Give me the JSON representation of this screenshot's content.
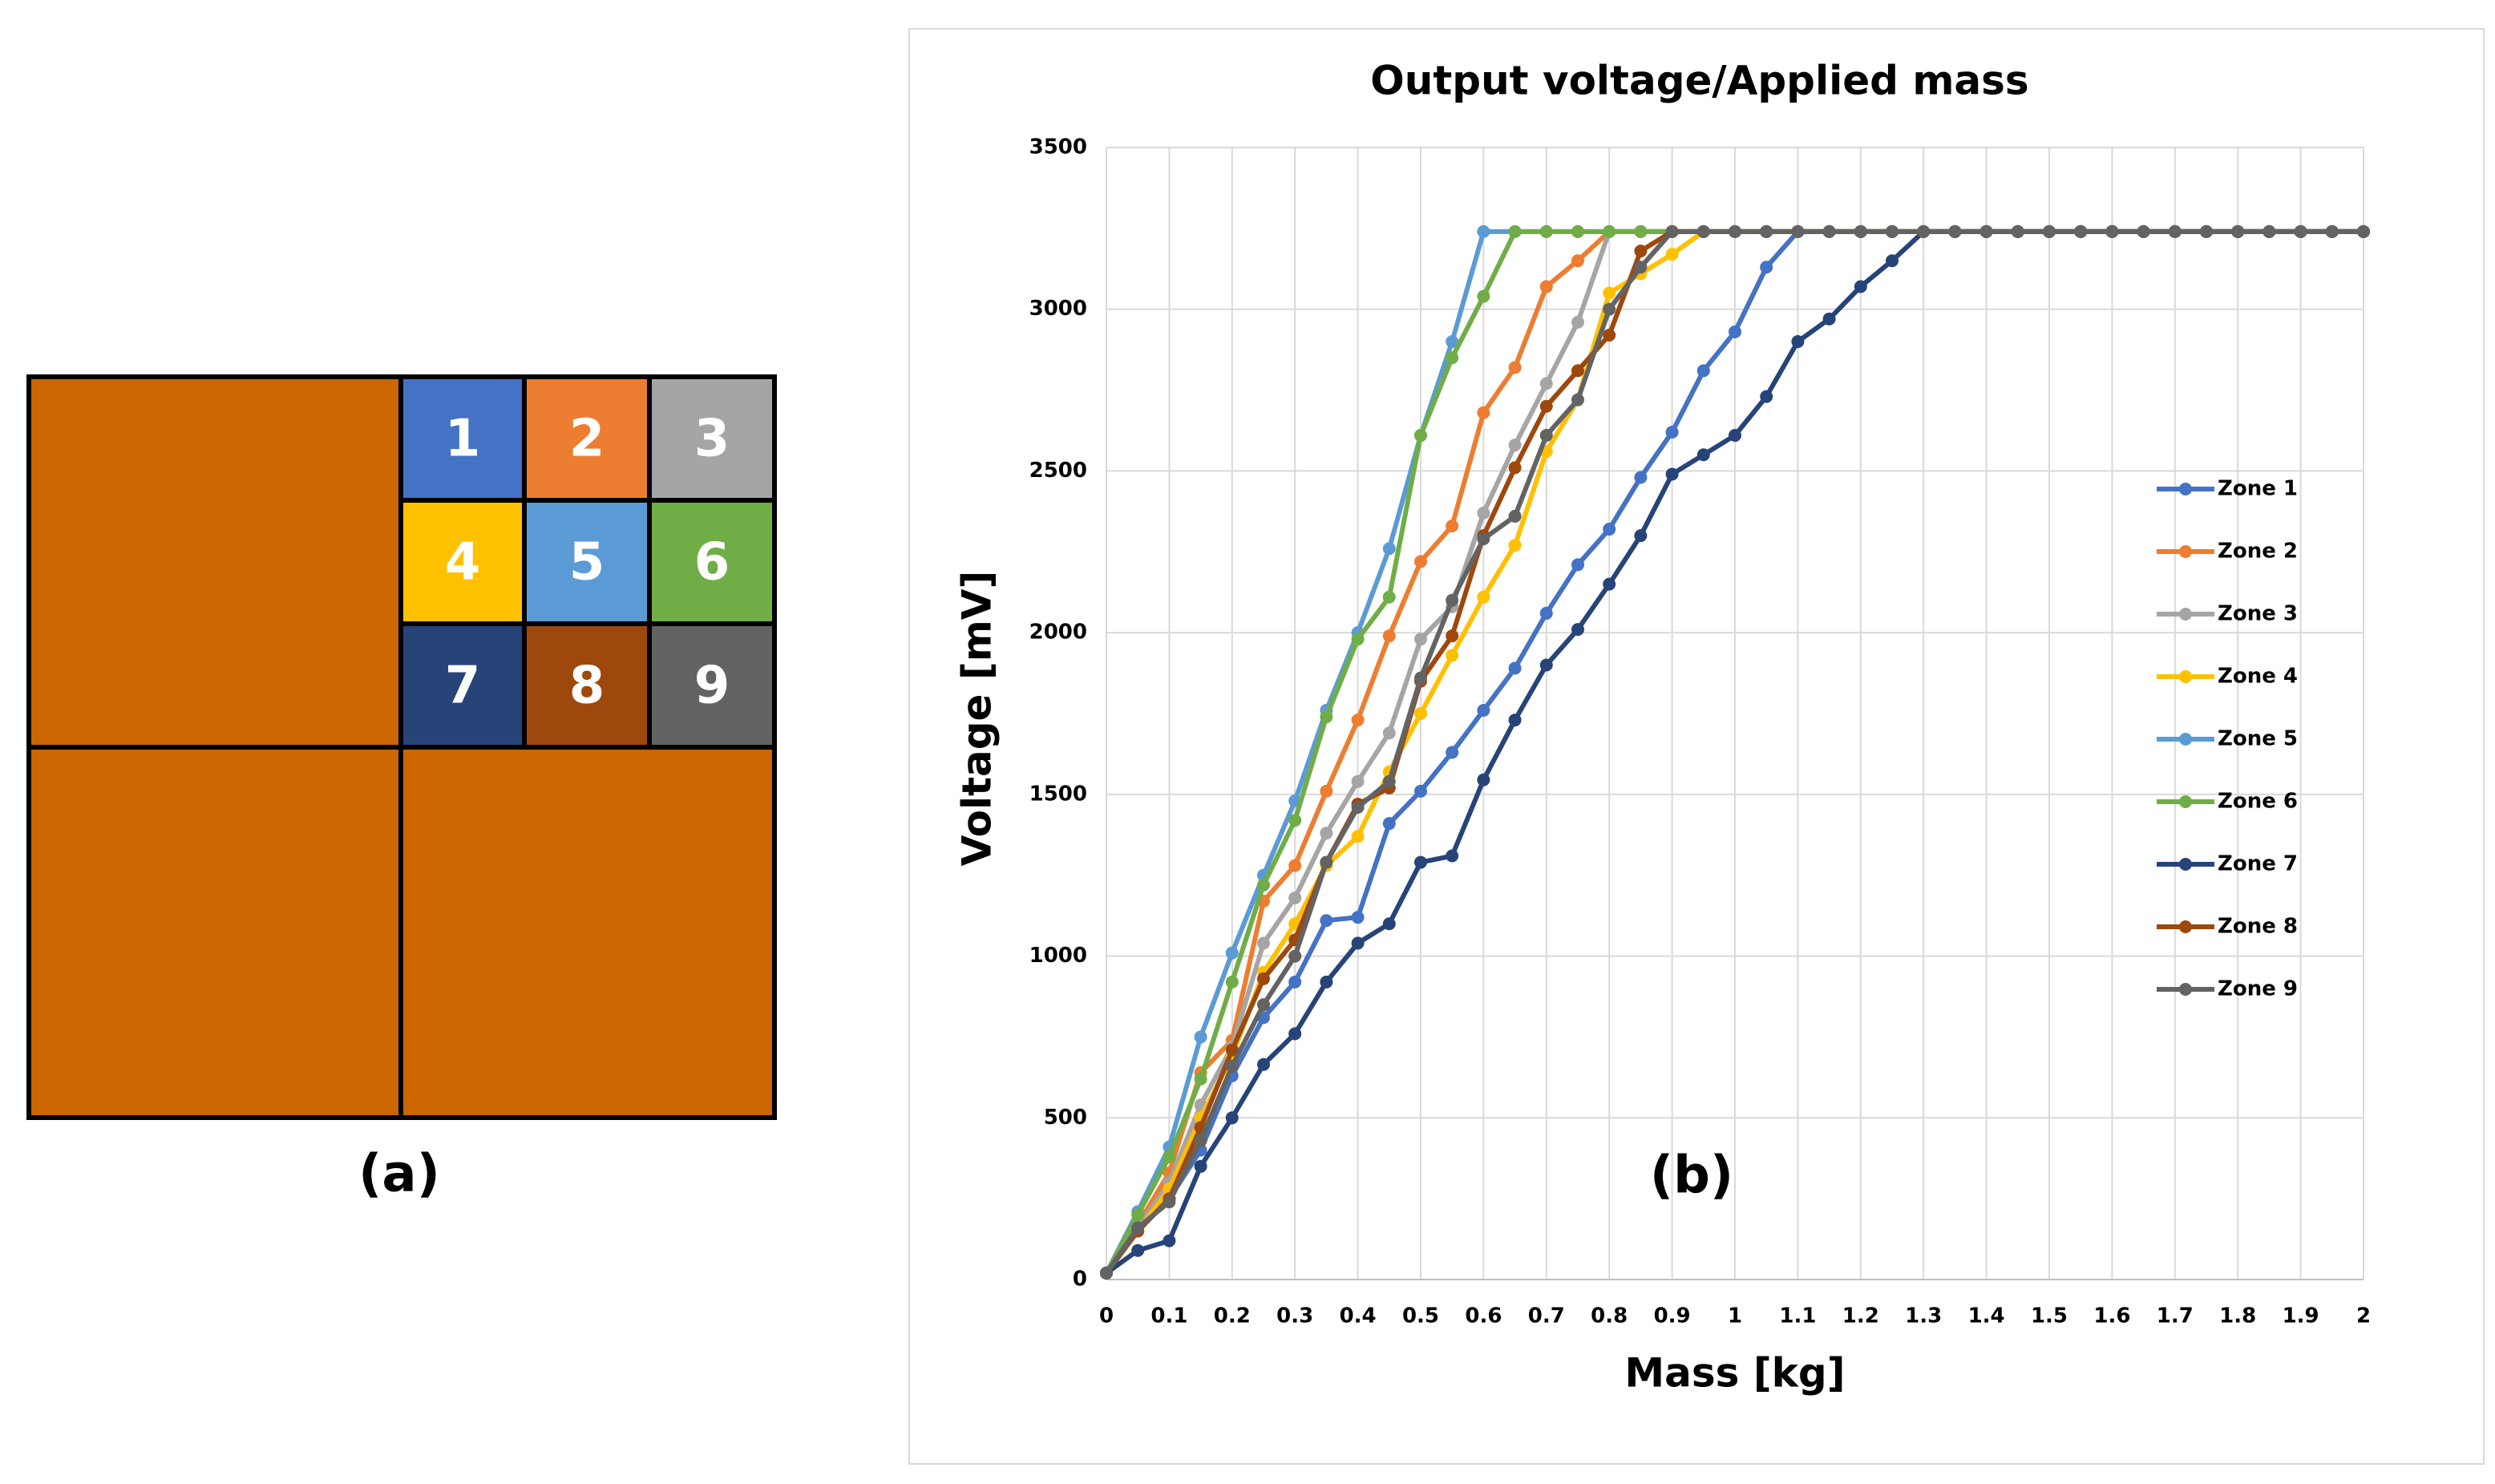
{
  "diagram": {
    "cells": [
      {
        "label": "1",
        "color": "#4472c4"
      },
      {
        "label": "2",
        "color": "#ed7d31"
      },
      {
        "label": "3",
        "color": "#a5a5a5"
      },
      {
        "label": "4",
        "color": "#ffc000"
      },
      {
        "label": "5",
        "color": "#5b9bd5"
      },
      {
        "label": "6",
        "color": "#70ad47"
      },
      {
        "label": "7",
        "color": "#264478"
      },
      {
        "label": "8",
        "color": "#9e480e"
      },
      {
        "label": "9",
        "color": "#636363"
      }
    ],
    "panel_color": "#cc6600",
    "label": "(a)"
  },
  "chart_data": {
    "type": "line",
    "title": "Output voltage/Applied mass",
    "annotation": "(b)",
    "x_label": "Mass [kg]",
    "y_label": "Voltage [mV]",
    "x": [
      0,
      0.05,
      0.1,
      0.15,
      0.2,
      0.25,
      0.3,
      0.35,
      0.4,
      0.45,
      0.5,
      0.55,
      0.6,
      0.65,
      0.7,
      0.75,
      0.8,
      0.85,
      0.9,
      0.95,
      1,
      1.05,
      1.1,
      1.15,
      1.2,
      1.25,
      1.3,
      1.35,
      1.4,
      1.45,
      1.5,
      1.55,
      1.6,
      1.65,
      1.7,
      1.75,
      1.8,
      1.85,
      1.9,
      1.95,
      2
    ],
    "xlim": [
      0,
      2
    ],
    "xticks": [
      0,
      0.1,
      0.2,
      0.3,
      0.4,
      0.5,
      0.6,
      0.7,
      0.8,
      0.9,
      1,
      1.1,
      1.2,
      1.3,
      1.4,
      1.5,
      1.6,
      1.7,
      1.8,
      1.9,
      2
    ],
    "ylim": [
      0,
      3500
    ],
    "yticks": [
      0,
      500,
      1000,
      1500,
      2000,
      2500,
      3000,
      3500
    ],
    "grid": true,
    "legend": "right",
    "series": [
      {
        "name": "Zone 1",
        "color": "#4472c4",
        "values": [
          20,
          150,
          250,
          400,
          630,
          810,
          920,
          1110,
          1120,
          1410,
          1510,
          1630,
          1760,
          1890,
          2060,
          2210,
          2320,
          2480,
          2620,
          2810,
          2930,
          3130,
          3240,
          3240,
          3240,
          3240,
          3240,
          3240,
          3240,
          3240,
          3240,
          3240,
          3240,
          3240,
          3240,
          3240,
          3240,
          3240,
          3240,
          3240,
          3240
        ]
      },
      {
        "name": "Zone 2",
        "color": "#ed7d31",
        "values": [
          20,
          170,
          330,
          640,
          740,
          1170,
          1280,
          1510,
          1730,
          1990,
          2220,
          2330,
          2680,
          2820,
          3070,
          3150,
          3240,
          3240,
          3240,
          3240,
          3240,
          3240,
          3240,
          3240,
          3240,
          3240,
          3240,
          3240,
          3240,
          3240,
          3240,
          3240,
          3240,
          3240,
          3240,
          3240,
          3240,
          3240,
          3240,
          3240,
          3240
        ]
      },
      {
        "name": "Zone 3",
        "color": "#a5a5a5",
        "values": [
          20,
          160,
          300,
          540,
          720,
          1040,
          1180,
          1380,
          1540,
          1690,
          1980,
          2080,
          2370,
          2580,
          2770,
          2960,
          3240,
          3240,
          3240,
          3240,
          3240,
          3240,
          3240,
          3240,
          3240,
          3240,
          3240,
          3240,
          3240,
          3240,
          3240,
          3240,
          3240,
          3240,
          3240,
          3240,
          3240,
          3240,
          3240,
          3240,
          3240
        ]
      },
      {
        "name": "Zone 4",
        "color": "#ffc000",
        "values": [
          20,
          150,
          280,
          500,
          690,
          950,
          1100,
          1280,
          1370,
          1570,
          1750,
          1930,
          2110,
          2270,
          2560,
          2720,
          3050,
          3110,
          3170,
          3240,
          3240,
          3240,
          3240,
          3240,
          3240,
          3240,
          3240,
          3240,
          3240,
          3240,
          3240,
          3240,
          3240,
          3240,
          3240,
          3240,
          3240,
          3240,
          3240,
          3240,
          3240
        ]
      },
      {
        "name": "Zone 5",
        "color": "#5b9bd5",
        "values": [
          20,
          210,
          410,
          750,
          1010,
          1250,
          1480,
          1760,
          2000,
          2260,
          2610,
          2900,
          3240,
          3240,
          3240,
          3240,
          3240,
          3240,
          3240,
          3240,
          3240,
          3240,
          3240,
          3240,
          3240,
          3240,
          3240,
          3240,
          3240,
          3240,
          3240,
          3240,
          3240,
          3240,
          3240,
          3240,
          3240,
          3240,
          3240,
          3240,
          3240
        ]
      },
      {
        "name": "Zone 6",
        "color": "#70ad47",
        "values": [
          20,
          200,
          380,
          620,
          920,
          1220,
          1420,
          1740,
          1980,
          2110,
          2610,
          2850,
          3040,
          3240,
          3240,
          3240,
          3240,
          3240,
          3240,
          3240,
          3240,
          3240,
          3240,
          3240,
          3240,
          3240,
          3240,
          3240,
          3240,
          3240,
          3240,
          3240,
          3240,
          3240,
          3240,
          3240,
          3240,
          3240,
          3240,
          3240,
          3240
        ]
      },
      {
        "name": "Zone 7",
        "color": "#264478",
        "values": [
          20,
          90,
          120,
          350,
          500,
          665,
          760,
          920,
          1040,
          1100,
          1290,
          1310,
          1545,
          1730,
          1900,
          2010,
          2150,
          2300,
          2490,
          2550,
          2610,
          2730,
          2900,
          2970,
          3070,
          3150,
          3240,
          3240,
          3240,
          3240,
          3240,
          3240,
          3240,
          3240,
          3240,
          3240,
          3240,
          3240,
          3240,
          3240,
          3240
        ]
      },
      {
        "name": "Zone 8",
        "color": "#9e480e",
        "values": [
          20,
          150,
          250,
          470,
          710,
          930,
          1050,
          1290,
          1470,
          1520,
          1850,
          1990,
          2300,
          2510,
          2700,
          2810,
          2920,
          3180,
          3240,
          3240,
          3240,
          3240,
          3240,
          3240,
          3240,
          3240,
          3240,
          3240,
          3240,
          3240,
          3240,
          3240,
          3240,
          3240,
          3240,
          3240,
          3240,
          3240,
          3240,
          3240,
          3240
        ]
      },
      {
        "name": "Zone 9",
        "color": "#636363",
        "values": [
          20,
          160,
          240,
          430,
          660,
          850,
          1000,
          1290,
          1460,
          1540,
          1860,
          2100,
          2290,
          2360,
          2610,
          2720,
          3000,
          3130,
          3240,
          3240,
          3240,
          3240,
          3240,
          3240,
          3240,
          3240,
          3240,
          3240,
          3240,
          3240,
          3240,
          3240,
          3240,
          3240,
          3240,
          3240,
          3240,
          3240,
          3240,
          3240,
          3240
        ]
      }
    ]
  }
}
